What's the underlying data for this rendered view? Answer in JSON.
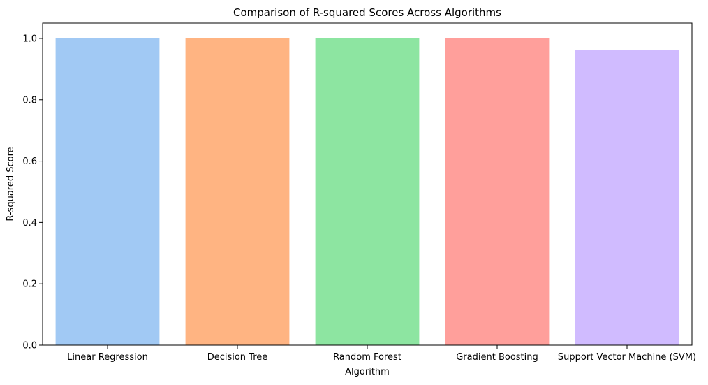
{
  "chart_data": {
    "type": "bar",
    "title": "Comparison of R-squared Scores Across Algorithms",
    "xlabel": "Algorithm",
    "ylabel": "R-squared Score",
    "categories": [
      "Linear Regression",
      "Decision Tree",
      "Random Forest",
      "Gradient Boosting",
      "Support Vector Machine (SVM)"
    ],
    "values": [
      1.0,
      1.0,
      1.0,
      1.0,
      0.963
    ],
    "colors": [
      "#a1c9f4",
      "#ffb482",
      "#8de5a1",
      "#ff9f9b",
      "#d0bbff"
    ],
    "ylim": [
      0,
      1.05
    ],
    "yticks": [
      0.0,
      0.2,
      0.4,
      0.6,
      0.8,
      1.0
    ],
    "ytick_labels": [
      "0.0",
      "0.2",
      "0.4",
      "0.6",
      "0.8",
      "1.0"
    ],
    "grid": false,
    "legend": false
  }
}
